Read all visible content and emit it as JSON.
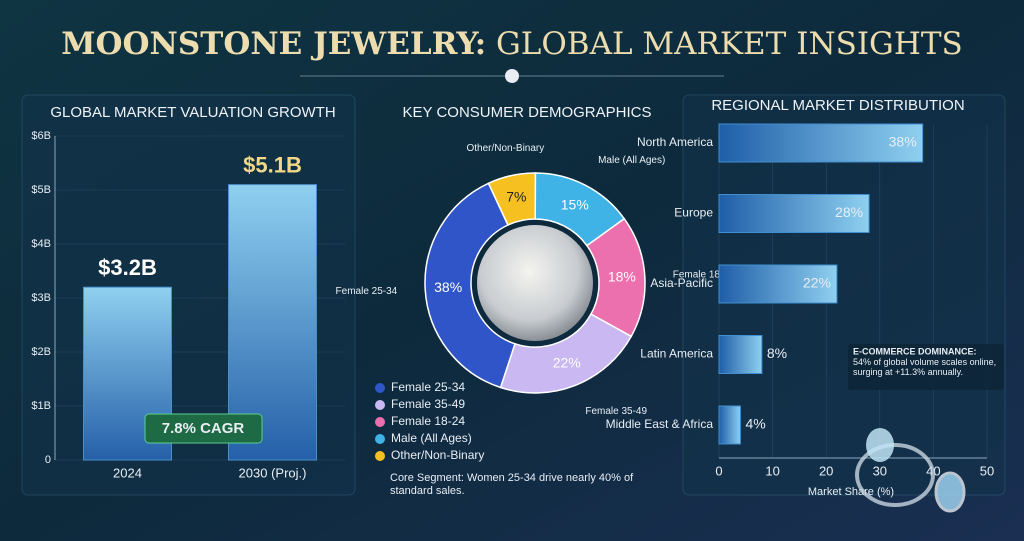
{
  "title": [
    "MOONSTONE JEWELRY:",
    "GLOBAL MARKET INSIGHTS"
  ],
  "chart_data": [
    {
      "type": "bar",
      "title": "GLOBAL MARKET VALUATION GROWTH",
      "categories": [
        "2024",
        "2030 (Proj.)"
      ],
      "values": [
        3.2,
        5.1
      ],
      "value_labels": [
        "$3.2B",
        "$5.1B"
      ],
      "color": "#4a90c8",
      "ylim": [
        0,
        6
      ],
      "yticks": [
        0,
        {
          "value": 1,
          "label": "$1B"
        },
        {
          "value": 2,
          "label": "$2B"
        },
        {
          "value": 3,
          "label": "$3B"
        },
        {
          "value": 4,
          "label": "$4B"
        },
        {
          "value": 5,
          "label": "$5B"
        },
        {
          "value": 6,
          "label": "$6B"
        }
      ],
      "grid": true,
      "annotation": "7.8% CAGR"
    },
    {
      "type": "donut",
      "title": "KEY CONSUMER DEMOGRAPHICS",
      "categories": [
        "Female 25-34",
        "Female 35-49",
        "Female 18-24",
        "Male (All Ages)",
        "Other/Non-Binary"
      ],
      "values": [
        38,
        22,
        18,
        15,
        7
      ],
      "value_labels": [
        "38%",
        "22%",
        "18%",
        "15%",
        "7%"
      ],
      "colors": [
        "#2f55c8",
        "#c9b8f2",
        "#ec6fae",
        "#3fb2e6",
        "#f5c020"
      ],
      "annotation": "Core Segment: Women 25-34 drive nearly 40% of standard sales."
    },
    {
      "type": "hbar",
      "title": "REGIONAL MARKET DISTRIBUTION",
      "categories": [
        "North America",
        "Europe",
        "Asia-Pacific",
        "Latin America",
        "Middle East & Africa"
      ],
      "values": [
        38,
        28,
        22,
        8,
        4
      ],
      "value_labels": [
        "38%",
        "28%",
        "22%",
        "8%",
        "4%"
      ],
      "color": "#3f8fd0",
      "xlim": [
        0,
        50
      ],
      "xticks": [
        0,
        10,
        20,
        30,
        40,
        50
      ],
      "xlabel": "Market Share (%)",
      "grid": true,
      "annotation": {
        "title": "E-COMMERCE DOMINANCE:",
        "text": "54% of global volume scales online, surging at +11.3% annually."
      }
    }
  ]
}
